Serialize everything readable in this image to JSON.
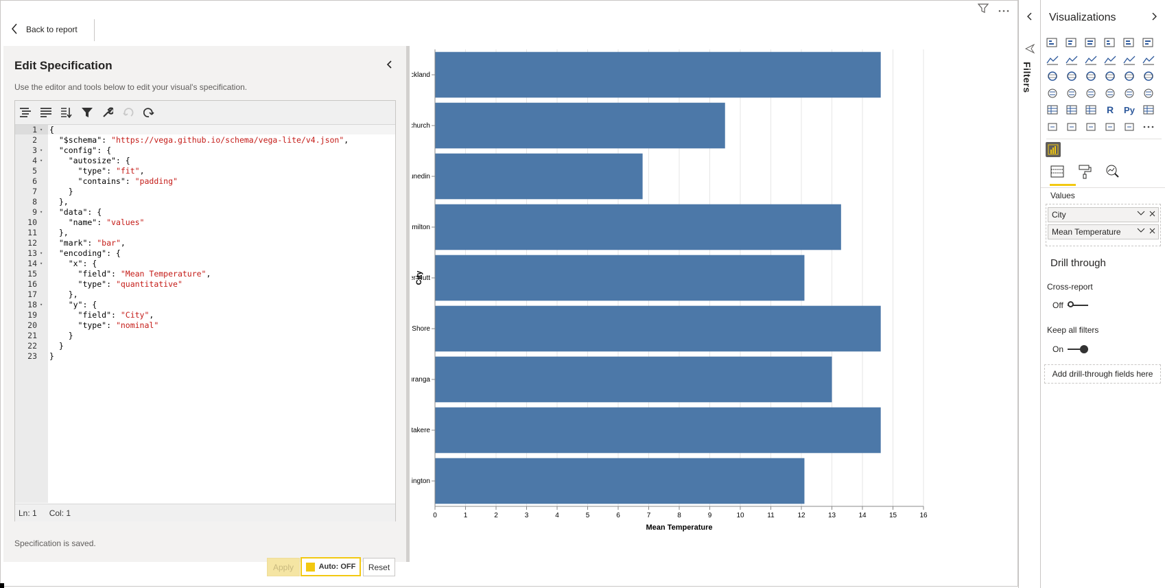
{
  "topbar": {
    "back_label": "Back to report"
  },
  "spec": {
    "title": "Edit Specification",
    "description": "Use the editor and tools below to edit your visual's specification.",
    "code_lines": [
      {
        "n": "1",
        "fold": true,
        "parts": [
          [
            "t",
            "{"
          ]
        ]
      },
      {
        "n": "2",
        "fold": false,
        "parts": [
          [
            "t",
            "  \"$schema\": "
          ],
          [
            "s",
            "\"https://vega.github.io/schema/vega-lite/v4.json\""
          ],
          [
            "t",
            ","
          ]
        ]
      },
      {
        "n": "3",
        "fold": true,
        "parts": [
          [
            "t",
            "  \"config\": {"
          ]
        ]
      },
      {
        "n": "4",
        "fold": true,
        "parts": [
          [
            "t",
            "    \"autosize\": {"
          ]
        ]
      },
      {
        "n": "5",
        "fold": false,
        "parts": [
          [
            "t",
            "      \"type\": "
          ],
          [
            "s",
            "\"fit\""
          ],
          [
            "t",
            ","
          ]
        ]
      },
      {
        "n": "6",
        "fold": false,
        "parts": [
          [
            "t",
            "      \"contains\": "
          ],
          [
            "s",
            "\"padding\""
          ]
        ]
      },
      {
        "n": "7",
        "fold": false,
        "parts": [
          [
            "t",
            "    }"
          ]
        ]
      },
      {
        "n": "8",
        "fold": false,
        "parts": [
          [
            "t",
            "  },"
          ]
        ]
      },
      {
        "n": "9",
        "fold": true,
        "parts": [
          [
            "t",
            "  \"data\": {"
          ]
        ]
      },
      {
        "n": "10",
        "fold": false,
        "parts": [
          [
            "t",
            "    \"name\": "
          ],
          [
            "s",
            "\"values\""
          ]
        ]
      },
      {
        "n": "11",
        "fold": false,
        "parts": [
          [
            "t",
            "  },"
          ]
        ]
      },
      {
        "n": "12",
        "fold": false,
        "parts": [
          [
            "t",
            "  \"mark\": "
          ],
          [
            "s",
            "\"bar\""
          ],
          [
            "t",
            ","
          ]
        ]
      },
      {
        "n": "13",
        "fold": true,
        "parts": [
          [
            "t",
            "  \"encoding\": {"
          ]
        ]
      },
      {
        "n": "14",
        "fold": true,
        "parts": [
          [
            "t",
            "    \"x\": {"
          ]
        ]
      },
      {
        "n": "15",
        "fold": false,
        "parts": [
          [
            "t",
            "      \"field\": "
          ],
          [
            "s",
            "\"Mean Temperature\""
          ],
          [
            "t",
            ","
          ]
        ]
      },
      {
        "n": "16",
        "fold": false,
        "parts": [
          [
            "t",
            "      \"type\": "
          ],
          [
            "s",
            "\"quantitative\""
          ]
        ]
      },
      {
        "n": "17",
        "fold": false,
        "parts": [
          [
            "t",
            "    },"
          ]
        ]
      },
      {
        "n": "18",
        "fold": true,
        "parts": [
          [
            "t",
            "    \"y\": {"
          ]
        ]
      },
      {
        "n": "19",
        "fold": false,
        "parts": [
          [
            "t",
            "      \"field\": "
          ],
          [
            "s",
            "\"City\""
          ],
          [
            "t",
            ","
          ]
        ]
      },
      {
        "n": "20",
        "fold": false,
        "parts": [
          [
            "t",
            "      \"type\": "
          ],
          [
            "s",
            "\"nominal\""
          ]
        ]
      },
      {
        "n": "21",
        "fold": false,
        "parts": [
          [
            "t",
            "    }"
          ]
        ]
      },
      {
        "n": "22",
        "fold": false,
        "parts": [
          [
            "t",
            "  }"
          ]
        ]
      },
      {
        "n": "23",
        "fold": false,
        "parts": [
          [
            "t",
            "}"
          ]
        ]
      }
    ],
    "status_ln": "Ln: 1",
    "status_col": "Col: 1",
    "saved_text": "Specification is saved.",
    "apply_label": "Apply",
    "auto_label": "Auto: OFF",
    "reset_label": "Reset"
  },
  "chart_data": {
    "type": "bar",
    "orientation": "horizontal",
    "categories": [
      "Auckland",
      "Christchurch",
      "Dunedin",
      "Hamilton",
      "Lower Hutt",
      "North Shore",
      "Tauranga",
      "Waitakere",
      "Wellington"
    ],
    "values": [
      14.6,
      9.5,
      6.8,
      13.3,
      12.1,
      14.6,
      13.0,
      14.6,
      12.1
    ],
    "xlabel": "Mean Temperature",
    "ylabel": "City",
    "xlim": [
      0,
      16
    ],
    "xticks": [
      0,
      1,
      2,
      3,
      4,
      5,
      6,
      7,
      8,
      9,
      10,
      11,
      12,
      13,
      14,
      15,
      16
    ],
    "grid": true,
    "bar_color": "#4c78a8"
  },
  "filters": {
    "label": "Filters"
  },
  "visualizations": {
    "title": "Visualizations",
    "values_label": "Values",
    "fields": [
      "City",
      "Mean Temperature"
    ],
    "drill_title": "Drill through",
    "cross_report_label": "Cross-report",
    "cross_report_state": "Off",
    "keep_filters_label": "Keep all filters",
    "keep_filters_state": "On",
    "drill_well_text": "Add drill-through fields here",
    "r_label": "R",
    "py_label": "Py",
    "accent_color": "#f2c811"
  }
}
